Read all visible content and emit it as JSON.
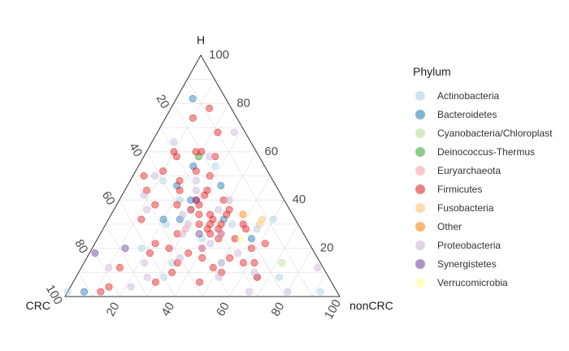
{
  "chart_data": {
    "type": "scatter",
    "subtype": "ternary",
    "axes": {
      "top": "H",
      "left": "CRC",
      "right": "nonCRC"
    },
    "ticks": [
      "20",
      "40",
      "60",
      "80",
      "100"
    ],
    "grid": true,
    "legend": {
      "title": "Phylum",
      "placement": "right"
    },
    "series": [
      {
        "name": "Actinobacteria",
        "color": "#a6cee3",
        "points": [
          [
            30,
            24,
            46
          ],
          [
            30,
            48,
            22
          ],
          [
            40,
            38,
            22
          ],
          [
            8,
            60,
            32
          ],
          [
            24,
            38,
            38
          ],
          [
            48,
            40,
            12
          ],
          [
            14,
            36,
            50
          ],
          [
            28,
            16,
            56
          ],
          [
            14,
            54,
            32
          ],
          [
            54,
            18,
            28
          ],
          [
            8,
            18,
            74
          ],
          [
            2,
            98,
            0
          ],
          [
            32,
            8,
            60
          ],
          [
            8,
            26,
            66
          ],
          [
            20,
            62,
            18
          ],
          [
            36,
            36,
            28
          ],
          [
            2,
            6,
            92
          ]
        ]
      },
      {
        "name": "Bacteroidetes",
        "color": "#1f78b4",
        "points": [
          [
            82,
            12,
            6
          ],
          [
            54,
            26,
            20
          ],
          [
            40,
            34,
            26
          ],
          [
            46,
            36,
            18
          ],
          [
            32,
            48,
            20
          ],
          [
            32,
            42,
            26
          ],
          [
            24,
            20,
            56
          ],
          [
            2,
            92,
            6
          ],
          [
            46,
            20,
            34
          ],
          [
            32,
            26,
            42
          ]
        ]
      },
      {
        "name": "Cyanobacteria/Chloroplast",
        "color": "#b2df8a",
        "points": [
          [
            14,
            14,
            72
          ]
        ]
      },
      {
        "name": "Deinococcus-Thermus",
        "color": "#33a02c",
        "points": [
          [
            58,
            22,
            20
          ]
        ]
      },
      {
        "name": "Euryarchaeota",
        "color": "#fb9a99",
        "points": [
          [
            28,
            42,
            30
          ]
        ]
      },
      {
        "name": "Firmicutes",
        "color": "#e31a1c",
        "points": [
          [
            78,
            8,
            14
          ],
          [
            74,
            16,
            10
          ],
          [
            68,
            10,
            22
          ],
          [
            60,
            30,
            10
          ],
          [
            60,
            22,
            18
          ],
          [
            60,
            20,
            20
          ],
          [
            58,
            30,
            12
          ],
          [
            58,
            16,
            26
          ],
          [
            52,
            38,
            10
          ],
          [
            52,
            26,
            22
          ],
          [
            50,
            22,
            28
          ],
          [
            48,
            34,
            18
          ],
          [
            44,
            36,
            20
          ],
          [
            44,
            26,
            30
          ],
          [
            42,
            28,
            30
          ],
          [
            40,
            22,
            38
          ],
          [
            38,
            40,
            22
          ],
          [
            38,
            32,
            30
          ],
          [
            36,
            36,
            28
          ],
          [
            36,
            22,
            42
          ],
          [
            34,
            24,
            42
          ],
          [
            32,
            30,
            38
          ],
          [
            32,
            56,
            12
          ],
          [
            30,
            32,
            38
          ],
          [
            30,
            28,
            42
          ],
          [
            30,
            36,
            34
          ],
          [
            30,
            20,
            50
          ],
          [
            28,
            34,
            38
          ],
          [
            28,
            20,
            52
          ],
          [
            28,
            30,
            42
          ],
          [
            26,
            34,
            40
          ],
          [
            26,
            30,
            44
          ],
          [
            24,
            32,
            44
          ],
          [
            24,
            26,
            50
          ],
          [
            22,
            16,
            62
          ],
          [
            20,
            22,
            58
          ],
          [
            20,
            40,
            40
          ],
          [
            18,
            60,
            22
          ],
          [
            18,
            46,
            36
          ],
          [
            16,
            42,
            42
          ],
          [
            16,
            32,
            52
          ],
          [
            14,
            28,
            58
          ],
          [
            14,
            24,
            62
          ],
          [
            14,
            52,
            34
          ],
          [
            12,
            40,
            48
          ],
          [
            12,
            74,
            14
          ],
          [
            10,
            56,
            34
          ],
          [
            8,
            26,
            66
          ],
          [
            6,
            64,
            30
          ],
          [
            6,
            48,
            46
          ],
          [
            4,
            82,
            14
          ],
          [
            2,
            86,
            12
          ],
          [
            22,
            56,
            22
          ],
          [
            38,
            48,
            14
          ],
          [
            34,
            34,
            32
          ],
          [
            10,
            38,
            52
          ],
          [
            26,
            46,
            28
          ],
          [
            20,
            52,
            28
          ],
          [
            44,
            48,
            8
          ],
          [
            50,
            46,
            4
          ],
          [
            34,
            30,
            36
          ],
          [
            40,
            32,
            28
          ]
        ]
      },
      {
        "name": "Fusobacteria",
        "color": "#fdbf6f",
        "points": [
          [
            32,
            12,
            56
          ],
          [
            30,
            14,
            56
          ]
        ]
      },
      {
        "name": "Other",
        "color": "#ff7f00",
        "points": [
          [
            34,
            18,
            48
          ]
        ]
      },
      {
        "name": "Proteobacteria",
        "color": "#cab2d6",
        "points": [
          [
            68,
            4,
            28
          ],
          [
            64,
            28,
            8
          ],
          [
            58,
            18,
            24
          ],
          [
            48,
            28,
            24
          ],
          [
            44,
            30,
            26
          ],
          [
            42,
            50,
            8
          ],
          [
            40,
            20,
            40
          ],
          [
            36,
            52,
            12
          ],
          [
            34,
            40,
            26
          ],
          [
            26,
            44,
            30
          ],
          [
            22,
            36,
            42
          ],
          [
            16,
            50,
            34
          ],
          [
            14,
            36,
            50
          ],
          [
            12,
            78,
            10
          ],
          [
            10,
            26,
            64
          ],
          [
            8,
            66,
            26
          ],
          [
            2,
            32,
            66
          ],
          [
            18,
            28,
            54
          ],
          [
            50,
            42,
            8
          ],
          [
            30,
            40,
            30
          ],
          [
            20,
            40,
            40
          ],
          [
            8,
            40,
            52
          ],
          [
            4,
            74,
            22
          ],
          [
            14,
            64,
            22
          ],
          [
            26,
            30,
            44
          ],
          [
            36,
            26,
            38
          ],
          [
            2,
            18,
            80
          ],
          [
            12,
            2,
            86
          ]
        ]
      },
      {
        "name": "Synergistetes",
        "color": "#6a3d9a",
        "points": [
          [
            18,
            80,
            2
          ],
          [
            40,
            32,
            28
          ],
          [
            26,
            38,
            36
          ],
          [
            20,
            68,
            12
          ]
        ]
      },
      {
        "name": "Verrucomicrobia",
        "color": "#ffff99",
        "points": [
          [
            24,
            24,
            52
          ]
        ]
      }
    ]
  }
}
